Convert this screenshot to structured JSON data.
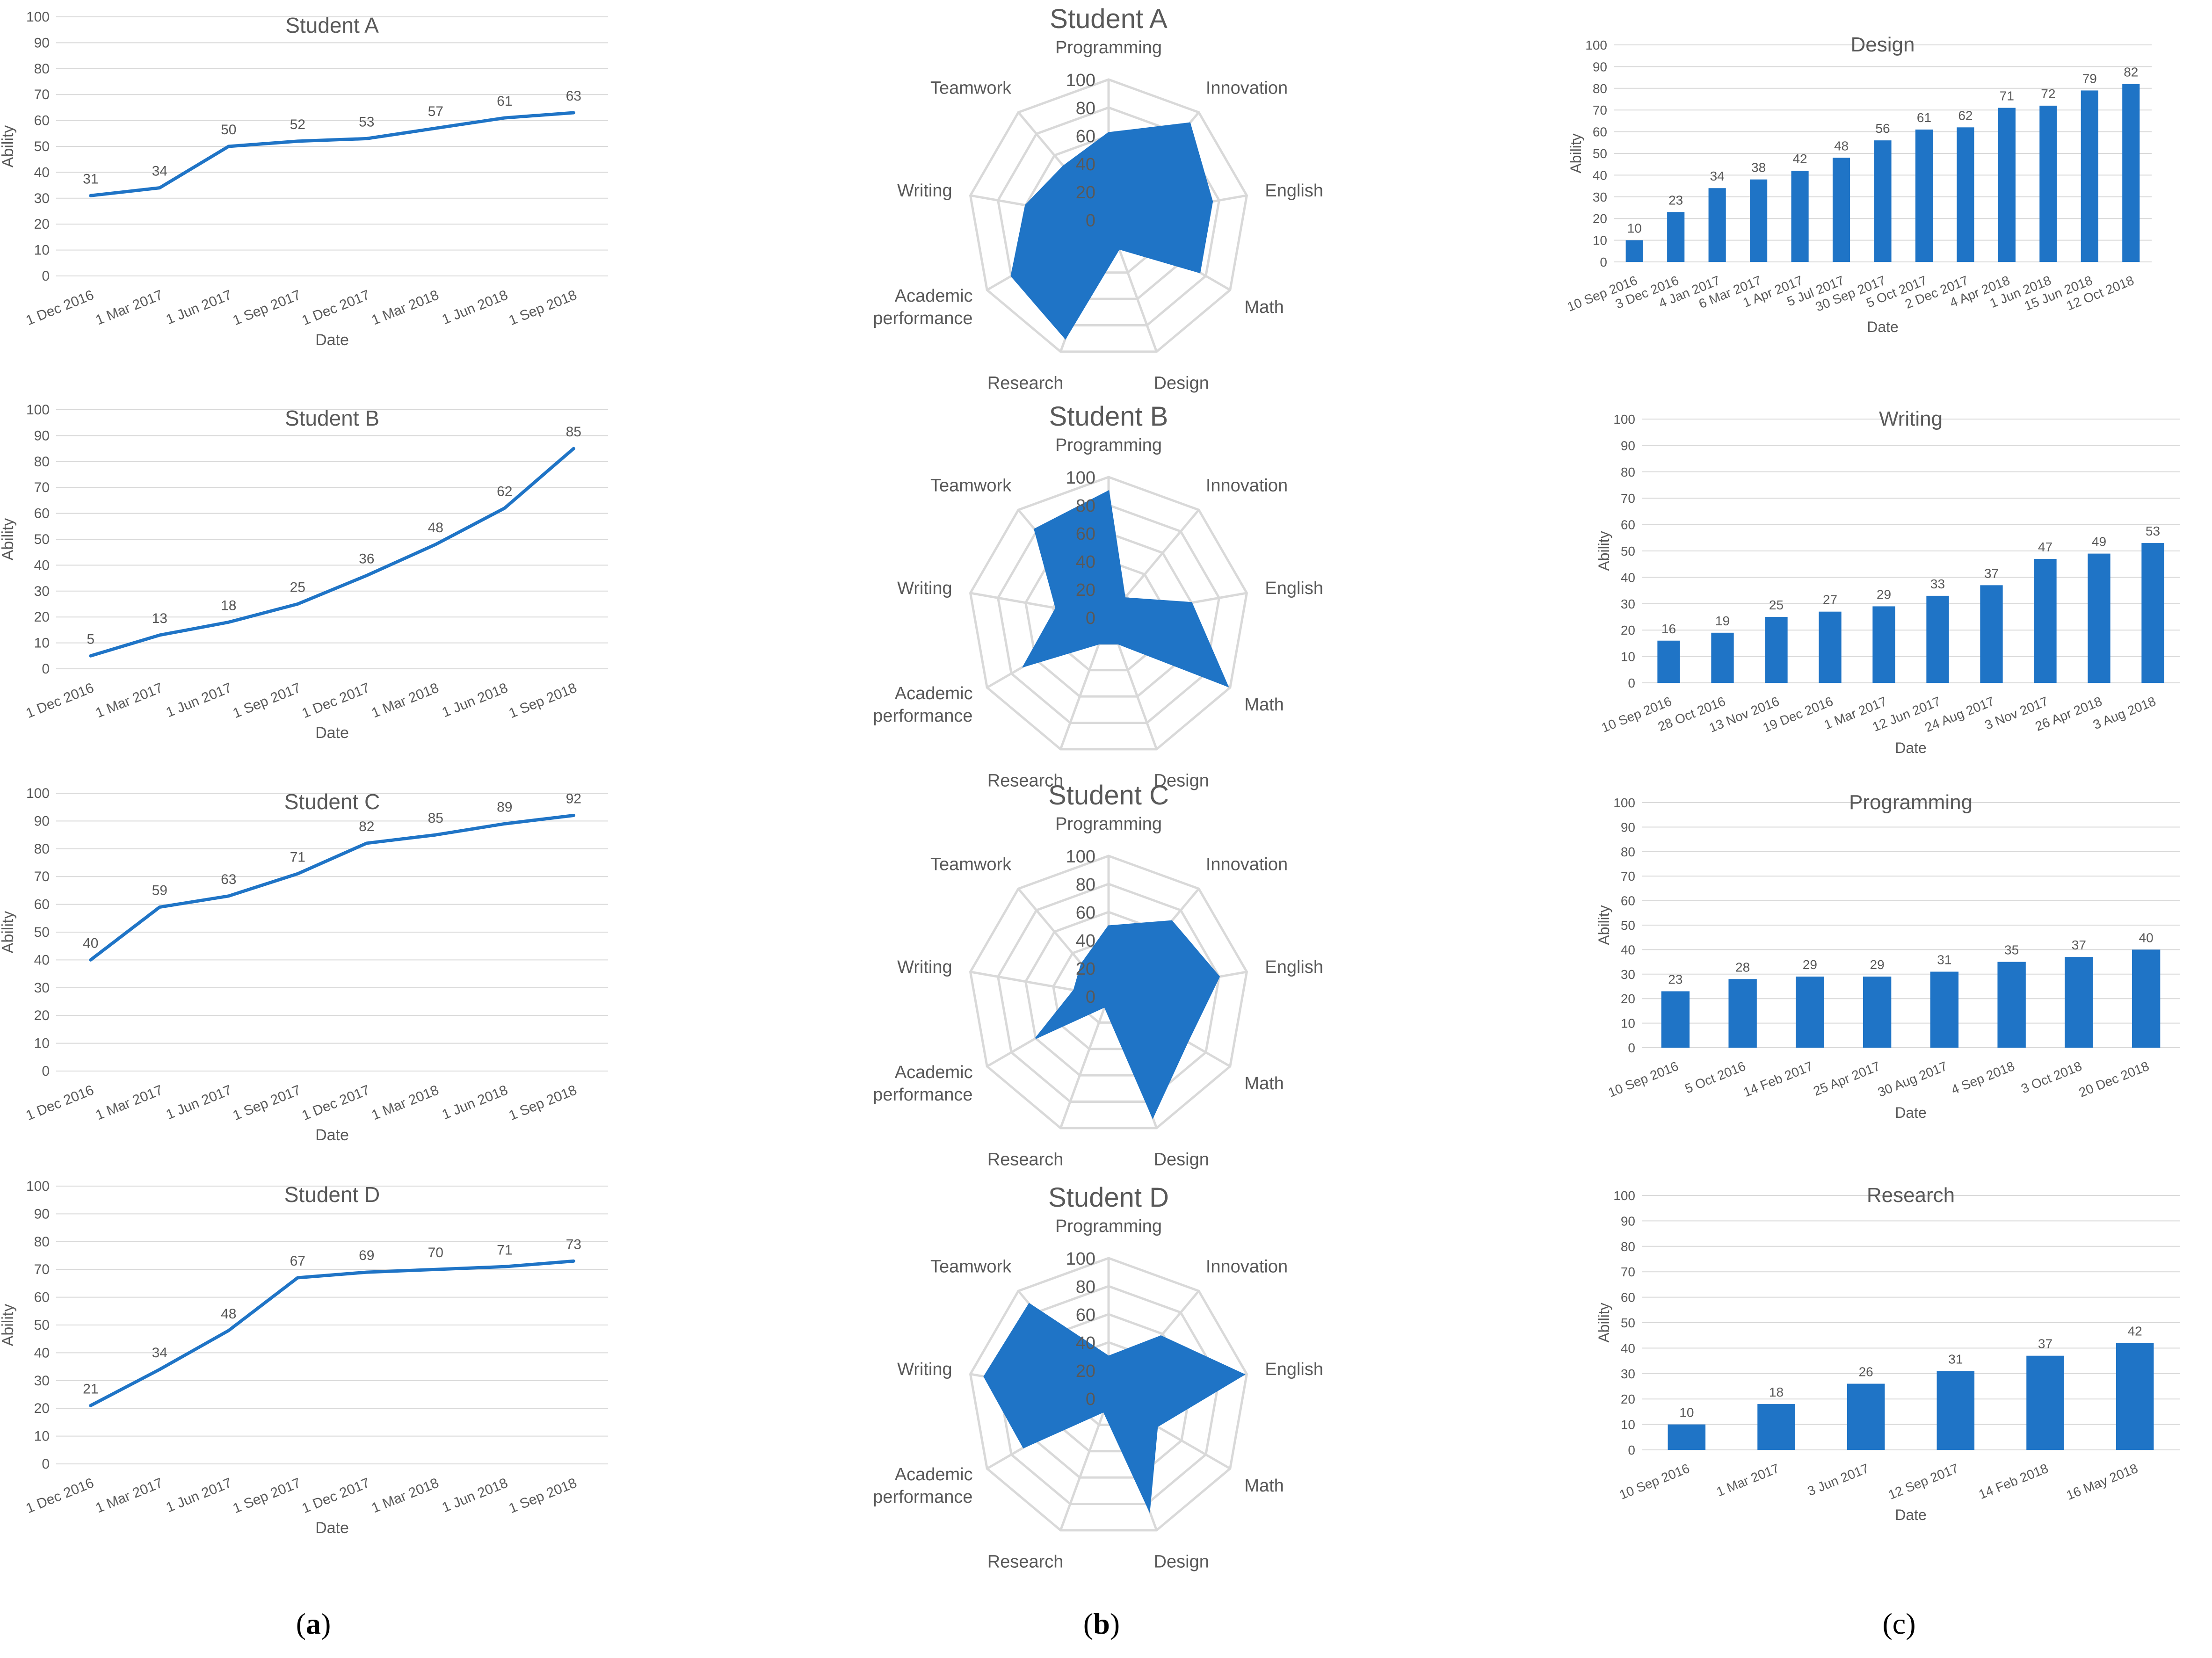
{
  "colors": {
    "series": "#1f74c6",
    "grid": "#d9d9d9",
    "text": "#595959",
    "radar_grid": "#d9d9d9"
  },
  "captions": {
    "a": "a",
    "b": "b",
    "c": "c"
  },
  "chart_data": [
    {
      "id": "line-student-a",
      "type": "line",
      "title": "Student A",
      "xlabel": "Date",
      "ylabel": "Ability",
      "ylim": [
        0,
        100
      ],
      "yticks": [
        0,
        10,
        20,
        30,
        40,
        50,
        60,
        70,
        80,
        90,
        100
      ],
      "categories": [
        "1 Dec 2016",
        "1 Mar 2017",
        "1 Jun 2017",
        "1 Sep 2017",
        "1 Dec 2017",
        "1 Mar 2018",
        "1 Jun 2018",
        "1 Sep 2018"
      ],
      "values": [
        31,
        34,
        50,
        52,
        53,
        57,
        61,
        63
      ]
    },
    {
      "id": "line-student-b",
      "type": "line",
      "title": "Student B",
      "xlabel": "Date",
      "ylabel": "Ability",
      "ylim": [
        0,
        100
      ],
      "yticks": [
        0,
        10,
        20,
        30,
        40,
        50,
        60,
        70,
        80,
        90,
        100
      ],
      "categories": [
        "1 Dec 2016",
        "1 Mar 2017",
        "1 Jun 2017",
        "1 Sep 2017",
        "1 Dec 2017",
        "1 Mar 2018",
        "1 Jun 2018",
        "1 Sep 2018"
      ],
      "values": [
        5,
        13,
        18,
        25,
        36,
        48,
        62,
        85
      ]
    },
    {
      "id": "line-student-c",
      "type": "line",
      "title": "Student C",
      "xlabel": "Date",
      "ylabel": "Ability",
      "ylim": [
        0,
        100
      ],
      "yticks": [
        0,
        10,
        20,
        30,
        40,
        50,
        60,
        70,
        80,
        90,
        100
      ],
      "categories": [
        "1 Dec 2016",
        "1 Mar 2017",
        "1 Jun 2017",
        "1 Sep 2017",
        "1 Dec 2017",
        "1 Mar 2018",
        "1 Jun 2018",
        "1 Sep 2018"
      ],
      "values": [
        40,
        59,
        63,
        71,
        82,
        85,
        89,
        92
      ]
    },
    {
      "id": "line-student-d",
      "type": "line",
      "title": "Student D",
      "xlabel": "Date",
      "ylabel": "Ability",
      "ylim": [
        0,
        100
      ],
      "yticks": [
        0,
        10,
        20,
        30,
        40,
        50,
        60,
        70,
        80,
        90,
        100
      ],
      "categories": [
        "1 Dec 2016",
        "1 Mar 2017",
        "1 Jun 2017",
        "1 Sep 2017",
        "1 Dec 2017",
        "1 Mar 2018",
        "1 Jun 2018",
        "1 Sep 2018"
      ],
      "values": [
        21,
        34,
        48,
        67,
        69,
        70,
        71,
        73
      ]
    },
    {
      "id": "radar-student-a",
      "type": "radar",
      "title": "Student A",
      "rlim": [
        0,
        100
      ],
      "rticks": [
        "0",
        "20",
        "40",
        "60",
        "80",
        "100"
      ],
      "axes": [
        "Programming",
        "Innovation",
        "English",
        "Math",
        "Design",
        "Research",
        "Academic|performance",
        "Writing",
        "Teamwork"
      ],
      "values": [
        62,
        90,
        75,
        75,
        22,
        90,
        80,
        60,
        50
      ]
    },
    {
      "id": "radar-student-b",
      "type": "radar",
      "title": "Student B",
      "rlim": [
        0,
        100
      ],
      "rticks": [
        "0",
        "20",
        "40",
        "60",
        "80",
        "100"
      ],
      "axes": [
        "Programming",
        "Innovation",
        "English",
        "Math",
        "Design",
        "Research",
        "Academic|performance",
        "Writing",
        "Teamwork"
      ],
      "values": [
        90,
        18,
        60,
        98,
        20,
        20,
        70,
        38,
        82
      ]
    },
    {
      "id": "radar-student-c",
      "type": "radar",
      "title": "Student C",
      "rlim": [
        0,
        100
      ],
      "rticks": [
        "0",
        "20",
        "40",
        "60",
        "80",
        "100"
      ],
      "axes": [
        "Programming",
        "Innovation",
        "English",
        "Math",
        "Design",
        "Research",
        "Academic|performance",
        "Writing",
        "Teamwork"
      ],
      "values": [
        50,
        70,
        80,
        65,
        92,
        8,
        60,
        25,
        30
      ]
    },
    {
      "id": "radar-student-d",
      "type": "radar",
      "title": "Student D",
      "rlim": [
        0,
        100
      ],
      "rticks": [
        "0",
        "20",
        "40",
        "60",
        "80",
        "100"
      ],
      "axes": [
        "Programming",
        "Innovation",
        "English",
        "Math",
        "Design",
        "Research",
        "Academic|performance",
        "Writing",
        "Teamwork"
      ],
      "values": [
        30,
        58,
        98,
        40,
        85,
        10,
        70,
        90,
        88
      ]
    },
    {
      "id": "bar-design",
      "type": "bar",
      "title": "Design",
      "xlabel": "Date",
      "ylabel": "Ability",
      "ylim": [
        0,
        100
      ],
      "yticks": [
        0,
        10,
        20,
        30,
        40,
        50,
        60,
        70,
        80,
        90,
        100
      ],
      "categories": [
        "10 Sep 2016",
        "3 Dec 2016",
        "4 Jan 2017",
        "6 Mar 2017",
        "1 Apr 2017",
        "5 Jul 2017",
        "30 Sep 2017",
        "5 Oct 2017",
        "2 Dec 2017",
        "4 Apr 2018",
        "1 Jun 2018",
        "15 Jun 2018",
        "12 Oct 2018"
      ],
      "values": [
        10,
        23,
        34,
        38,
        42,
        48,
        56,
        61,
        62,
        71,
        72,
        79,
        82
      ]
    },
    {
      "id": "bar-writing",
      "type": "bar",
      "title": "Writing",
      "xlabel": "Date",
      "ylabel": "Ability",
      "ylim": [
        0,
        100
      ],
      "yticks": [
        0,
        10,
        20,
        30,
        40,
        50,
        60,
        70,
        80,
        90,
        100
      ],
      "categories": [
        "10 Sep 2016",
        "28 Oct 2016",
        "13 Nov 2016",
        "19 Dec 2016",
        "1 Mar 2017",
        "12 Jun 2017",
        "24 Aug 2017",
        "3 Nov 2017",
        "26 Apr 2018",
        "3 Aug 2018"
      ],
      "values": [
        16,
        19,
        25,
        27,
        29,
        33,
        37,
        47,
        49,
        53
      ]
    },
    {
      "id": "bar-programming",
      "type": "bar",
      "title": "Programming",
      "xlabel": "Date",
      "ylabel": "Ability",
      "ylim": [
        0,
        100
      ],
      "yticks": [
        0,
        10,
        20,
        30,
        40,
        50,
        60,
        70,
        80,
        90,
        100
      ],
      "categories": [
        "10 Sep 2016",
        "5 Oct 2016",
        "14 Feb 2017",
        "25 Apr 2017",
        "30 Aug 2017",
        "4 Sep 2018",
        "3 Oct 2018",
        "20 Dec 2018"
      ],
      "values": [
        23,
        28,
        29,
        29,
        31,
        35,
        37,
        40
      ]
    },
    {
      "id": "bar-research",
      "type": "bar",
      "title": "Research",
      "xlabel": "Date",
      "ylabel": "Ability",
      "ylim": [
        0,
        100
      ],
      "yticks": [
        0,
        10,
        20,
        30,
        40,
        50,
        60,
        70,
        80,
        90,
        100
      ],
      "categories": [
        "10 Sep 2016",
        "1 Mar 2017",
        "3 Jun 2017",
        "12 Sep 2017",
        "14 Feb 2018",
        "16 May 2018"
      ],
      "values": [
        10,
        18,
        26,
        31,
        37,
        42
      ]
    }
  ]
}
